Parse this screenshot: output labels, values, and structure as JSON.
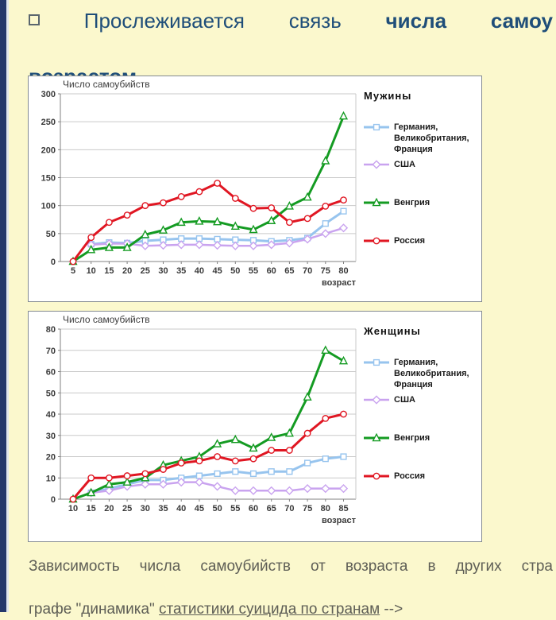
{
  "page": {
    "background_color": "#fbf8cd",
    "accent_bar_color": "#24386b",
    "title_color": "#1f4e79",
    "footer_color": "#5e5e56"
  },
  "title": {
    "bullet": "square-outline",
    "line1_normal": "Прослеживается связь",
    "line1_bold": "числа самоу",
    "line2_bold": "возрастом"
  },
  "footer": {
    "line1": "Зависимость числа самоубийств от возраста в других стра",
    "line2_prefix": "графе \"динамика\" ",
    "link_text": "статистики суицида по странам",
    "line2_suffix": " -->"
  },
  "chart_data": [
    {
      "type": "line",
      "title": "Число самоубийств",
      "legend_title": "Мужины",
      "xlabel": "возраст",
      "ylabel": "Число самоубийств",
      "ylim": [
        0,
        300
      ],
      "ytick": 50,
      "grid": true,
      "legend_position": "right",
      "x": [
        5,
        10,
        15,
        20,
        25,
        30,
        35,
        40,
        45,
        50,
        55,
        60,
        65,
        70,
        75,
        80
      ],
      "series": [
        {
          "name": "Германия,\nВеликобритания,\nФранция",
          "color": "#97c4ee",
          "marker": "square",
          "width": 3,
          "values": [
            null,
            31,
            34,
            33,
            37,
            39,
            41,
            41,
            40,
            39,
            38,
            36,
            38,
            42,
            68,
            90
          ]
        },
        {
          "name": "США",
          "color": "#c9a3ef",
          "marker": "diamond",
          "width": 2.5,
          "values": [
            null,
            30,
            32,
            32,
            28,
            29,
            30,
            30,
            29,
            28,
            28,
            30,
            33,
            40,
            50,
            60
          ]
        },
        {
          "name": "Венгрия",
          "color": "#149b22",
          "marker": "triangle",
          "width": 3,
          "values": [
            0,
            21,
            25,
            25,
            48,
            56,
            70,
            72,
            71,
            63,
            57,
            73,
            99,
            115,
            180,
            260
          ]
        },
        {
          "name": "Россия",
          "color": "#e01622",
          "marker": "circle",
          "width": 3,
          "values": [
            0,
            43,
            70,
            83,
            100,
            105,
            116,
            125,
            140,
            113,
            95,
            96,
            70,
            77,
            99,
            110
          ]
        }
      ]
    },
    {
      "type": "line",
      "title": "Число самоубийств",
      "legend_title": "Женщины",
      "xlabel": "возраст",
      "ylabel": "Число самоубийств",
      "ylim": [
        0,
        80
      ],
      "ytick": 10,
      "grid": true,
      "legend_position": "right",
      "x": [
        10,
        15,
        20,
        25,
        30,
        35,
        40,
        45,
        50,
        55,
        60,
        65,
        70,
        75,
        80,
        85
      ],
      "series": [
        {
          "name": "Германия,\nВеликобритания,\nФранция",
          "color": "#97c4ee",
          "marker": "square",
          "width": 3,
          "values": [
            null,
            3,
            5,
            7,
            9,
            9,
            10,
            11,
            12,
            13,
            12,
            13,
            13,
            17,
            19,
            20
          ]
        },
        {
          "name": "США",
          "color": "#c9a3ef",
          "marker": "diamond",
          "width": 2.5,
          "values": [
            null,
            3,
            4,
            6,
            7,
            7,
            8,
            8,
            6,
            4,
            4,
            4,
            4,
            5,
            5,
            5
          ]
        },
        {
          "name": "Венгрия",
          "color": "#149b22",
          "marker": "triangle",
          "width": 3,
          "values": [
            0,
            3,
            7,
            8,
            10,
            16,
            18,
            20,
            26,
            28,
            24,
            29,
            31,
            48,
            70,
            65
          ]
        },
        {
          "name": "Россия",
          "color": "#e01622",
          "marker": "circle",
          "width": 3,
          "values": [
            0,
            10,
            10,
            11,
            12,
            14,
            17,
            18,
            20,
            18,
            19,
            23,
            23,
            31,
            38,
            40
          ]
        }
      ]
    }
  ]
}
